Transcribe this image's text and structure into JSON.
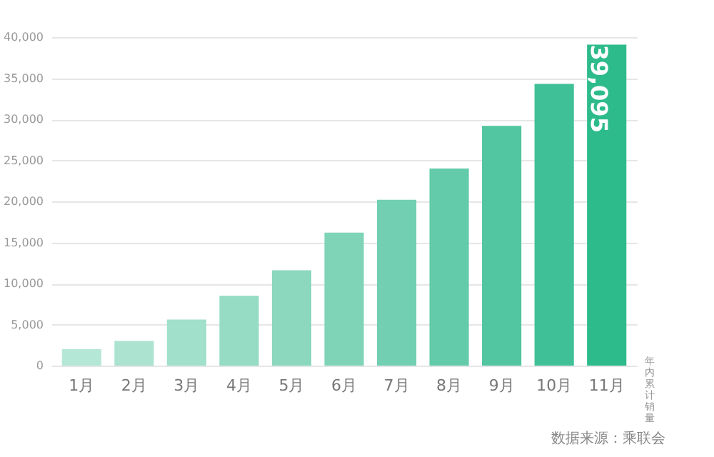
{
  "chart_data": {
    "type": "bar",
    "categories": [
      "1月",
      "2月",
      "3月",
      "4月",
      "5月",
      "6月",
      "7月",
      "8月",
      "9月",
      "10月",
      "11月"
    ],
    "values": [
      2000,
      3000,
      5600,
      8500,
      11600,
      16200,
      20200,
      24000,
      29200,
      34300,
      39095
    ],
    "colors": [
      "#b5e7d6",
      "#abe3d0",
      "#a1e0cb",
      "#96dcc5",
      "#8bd8bf",
      "#7fd4b8",
      "#72cfb1",
      "#63cbaa",
      "#52c5a1",
      "#40c097",
      "#2ebb8c"
    ],
    "value_labels": [
      null,
      null,
      null,
      null,
      null,
      null,
      null,
      null,
      null,
      null,
      "39,095"
    ],
    "ylim": [
      0,
      40000
    ],
    "yticks": [
      {
        "value": 0,
        "label": "0"
      },
      {
        "value": 5000,
        "label": "5,000"
      },
      {
        "value": 10000,
        "label": "10,000"
      },
      {
        "value": 15000,
        "label": "15,000"
      },
      {
        "value": 20000,
        "label": "20,000"
      },
      {
        "value": 25000,
        "label": "25,000"
      },
      {
        "value": 30000,
        "label": "30,000"
      },
      {
        "value": 35000,
        "label": "35,000"
      },
      {
        "value": 40000,
        "label": "40,000"
      }
    ],
    "grid": "y",
    "y2label": "年内累计销量",
    "annotations": [
      "数据来源：乘联会"
    ]
  }
}
